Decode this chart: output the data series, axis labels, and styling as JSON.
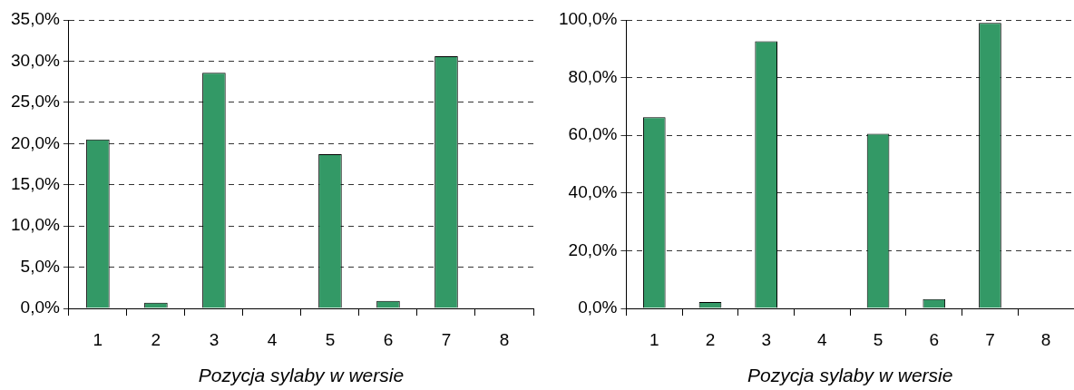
{
  "chart_data": [
    {
      "type": "bar",
      "xlabel": "Pozycja sylaby w wersie",
      "categories": [
        "1",
        "2",
        "3",
        "4",
        "5",
        "6",
        "7",
        "8"
      ],
      "values": [
        20.5,
        0.7,
        28.6,
        0,
        18.7,
        0.9,
        30.6,
        0
      ],
      "color": "#339966",
      "ylim": [
        0,
        35
      ],
      "yticks": [
        {
          "value": 0,
          "label": "0,0%"
        },
        {
          "value": 5,
          "label": "5,0%"
        },
        {
          "value": 10,
          "label": "10,0%"
        },
        {
          "value": 15,
          "label": "15,0%"
        },
        {
          "value": 20,
          "label": "20,0%"
        },
        {
          "value": 25,
          "label": "25,0%"
        },
        {
          "value": 30,
          "label": "30,0%"
        },
        {
          "value": 35,
          "label": "35,0%"
        }
      ],
      "grid": "y"
    },
    {
      "type": "bar",
      "xlabel": "Pozycja sylaby w wersie",
      "categories": [
        "1",
        "2",
        "3",
        "4",
        "5",
        "6",
        "7",
        "8"
      ],
      "values": [
        66.3,
        2.2,
        92.6,
        0,
        60.5,
        3.2,
        99.0,
        0
      ],
      "color": "#339966",
      "ylim": [
        0,
        100
      ],
      "yticks": [
        {
          "value": 0,
          "label": "0,0%"
        },
        {
          "value": 20,
          "label": "20,0%"
        },
        {
          "value": 40,
          "label": "40,0%"
        },
        {
          "value": 60,
          "label": "60,0%"
        },
        {
          "value": 80,
          "label": "80,0%"
        },
        {
          "value": 100,
          "label": "100,0%"
        }
      ],
      "grid": "y"
    }
  ]
}
